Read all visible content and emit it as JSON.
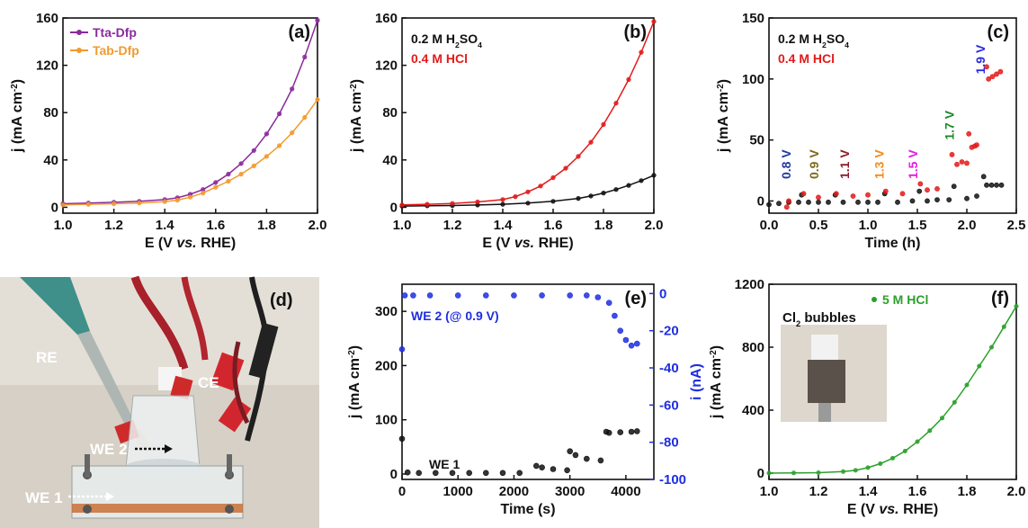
{
  "figure": "composite",
  "chart_data": [
    {
      "id": "a",
      "type": "line",
      "panel_label": "(a)",
      "xlabel": "E (V vs. RHE)",
      "ylabel": "j (mA cm-2)",
      "xlim": [
        1.0,
        2.0
      ],
      "ylim": [
        -5,
        160
      ],
      "xticks": [
        1.0,
        1.2,
        1.4,
        1.6,
        1.8,
        2.0
      ],
      "xtick_labels": [
        "1.0",
        "1.2",
        "1.4",
        "1.6",
        "1.8",
        "2.0"
      ],
      "yticks": [
        0,
        40,
        80,
        120,
        160
      ],
      "ytick_labels": [
        "0",
        "40",
        "80",
        "120",
        "160"
      ],
      "legend": "top-left",
      "series": [
        {
          "name": "Tta-Dfp",
          "color": "#8b2a9e",
          "x": [
            1.0,
            1.1,
            1.2,
            1.3,
            1.4,
            1.45,
            1.5,
            1.55,
            1.6,
            1.65,
            1.7,
            1.75,
            1.8,
            1.85,
            1.9,
            1.95,
            2.0
          ],
          "y": [
            3,
            3.6,
            4.2,
            5,
            6.5,
            8,
            11,
            15,
            21,
            28,
            37,
            48,
            62,
            79,
            100,
            127,
            158
          ]
        },
        {
          "name": "Tab-Dfp",
          "color": "#f29a2e",
          "x": [
            1.0,
            1.1,
            1.2,
            1.3,
            1.4,
            1.45,
            1.5,
            1.55,
            1.6,
            1.65,
            1.7,
            1.75,
            1.8,
            1.85,
            1.9,
            1.95,
            2.0
          ],
          "y": [
            2,
            2.5,
            3,
            3.6,
            4.8,
            6,
            8.5,
            12,
            17,
            22,
            28,
            35,
            43,
            52,
            63,
            76,
            91
          ]
        }
      ]
    },
    {
      "id": "b",
      "type": "line",
      "panel_label": "(b)",
      "xlabel": "E (V vs. RHE)",
      "ylabel": "j (mA cm-2)",
      "xlim": [
        1.0,
        2.0
      ],
      "ylim": [
        -5,
        160
      ],
      "xticks": [
        1.0,
        1.2,
        1.4,
        1.6,
        1.8,
        2.0
      ],
      "xtick_labels": [
        "1.0",
        "1.2",
        "1.4",
        "1.6",
        "1.8",
        "2.0"
      ],
      "yticks": [
        0,
        40,
        80,
        120,
        160
      ],
      "ytick_labels": [
        "0",
        "40",
        "80",
        "120",
        "160"
      ],
      "legend": "top-left",
      "series": [
        {
          "name": "0.2 M H2SO4",
          "color": "#111111",
          "x": [
            1.0,
            1.1,
            1.2,
            1.3,
            1.4,
            1.5,
            1.6,
            1.7,
            1.75,
            1.8,
            1.85,
            1.9,
            1.95,
            2.0
          ],
          "y": [
            1,
            1.2,
            1.5,
            1.9,
            2.5,
            3.5,
            5,
            7.5,
            9.5,
            12,
            15,
            18.5,
            22.5,
            27
          ]
        },
        {
          "name": "0.4 M HCl",
          "color": "#e41a1a",
          "x": [
            1.0,
            1.1,
            1.2,
            1.3,
            1.4,
            1.45,
            1.5,
            1.55,
            1.6,
            1.65,
            1.7,
            1.75,
            1.8,
            1.85,
            1.9,
            1.95,
            2.0
          ],
          "y": [
            2,
            2.5,
            3.2,
            4.5,
            6.5,
            9,
            13,
            18,
            25,
            33,
            43,
            55,
            70,
            88,
            108,
            131,
            157
          ]
        }
      ]
    },
    {
      "id": "c",
      "type": "scatter",
      "panel_label": "(c)",
      "xlabel": "Time (h)",
      "ylabel": "j (mA cm-2)",
      "xlim": [
        0.0,
        2.5
      ],
      "ylim": [
        -10,
        150
      ],
      "xticks": [
        0.0,
        0.5,
        1.0,
        1.5,
        2.0,
        2.5
      ],
      "xtick_labels": [
        "0.0",
        "0.5",
        "1.0",
        "1.5",
        "2.0",
        "2.5"
      ],
      "yticks": [
        0,
        50,
        100,
        150
      ],
      "ytick_labels": [
        "0",
        "50",
        "100",
        "150"
      ],
      "legend": "top-left",
      "series": [
        {
          "name": "0.2 M H2SO4",
          "color": "#111111",
          "x": [
            0.0,
            0.1,
            0.2,
            0.3,
            0.33,
            0.4,
            0.5,
            0.6,
            0.67,
            0.75,
            0.9,
            1.0,
            1.1,
            1.17,
            1.3,
            1.45,
            1.52,
            1.6,
            1.7,
            1.82,
            1.87,
            2.0,
            2.1,
            2.17,
            2.2,
            2.25,
            2.3,
            2.35
          ],
          "y": [
            -3,
            -2,
            -1,
            -1,
            5,
            -1,
            -1,
            -1,
            5,
            -1,
            -1,
            -1,
            -1,
            6,
            -1,
            0,
            8,
            0,
            1,
            1,
            12,
            2,
            4,
            20,
            13,
            13,
            13,
            13
          ]
        },
        {
          "name": "0.4 M HCl",
          "color": "#e41a1a",
          "x": [
            0.18,
            0.2,
            0.35,
            0.5,
            0.68,
            0.85,
            1.0,
            1.18,
            1.35,
            1.53,
            1.6,
            1.7,
            1.85,
            1.9,
            1.95,
            2.0,
            2.02,
            2.05,
            2.08,
            2.1,
            2.2,
            2.22,
            2.26,
            2.3,
            2.34
          ],
          "y": [
            -5,
            0,
            6,
            3,
            6,
            4,
            5,
            8,
            6,
            14,
            9,
            10,
            38,
            30,
            32,
            31,
            55,
            44,
            45,
            46,
            110,
            100,
            102,
            104,
            106
          ]
        }
      ],
      "annotations": [
        {
          "text": "0.8 V",
          "color": "#1f3a9e"
        },
        {
          "text": "0.9 V",
          "color": "#7a6a1c"
        },
        {
          "text": "1.1 V",
          "color": "#8e1b2a"
        },
        {
          "text": "1.3 V",
          "color": "#f08c1e"
        },
        {
          "text": "1.5 V",
          "color": "#e21ce0"
        },
        {
          "text": "1.7 V",
          "color": "#1a8a2a"
        },
        {
          "text": "1.9 V",
          "color": "#2a2ae0"
        }
      ]
    },
    {
      "id": "e",
      "type": "scatter",
      "panel_label": "(e)",
      "xlabel": "Time (s)",
      "ylabel": "j (mA cm-2)",
      "ylabel_right": "i (nA)",
      "xlim": [
        0,
        4500
      ],
      "ylim": [
        -10,
        350
      ],
      "ylim_right": [
        -100,
        5
      ],
      "xticks": [
        0,
        1000,
        2000,
        3000,
        4000
      ],
      "xtick_labels": [
        "0",
        "1000",
        "2000",
        "3000",
        "4000"
      ],
      "yticks": [
        0,
        100,
        200,
        300
      ],
      "ytick_labels": [
        "0",
        "100",
        "200",
        "300"
      ],
      "yticks_right": [
        0,
        -20,
        -40,
        -60,
        -80,
        -100
      ],
      "ytick_labels_right": [
        "0",
        "-20",
        "-40",
        "-60",
        "-80",
        "-100"
      ],
      "series": [
        {
          "name": "WE 1",
          "color": "#111111",
          "axis": "left",
          "x": [
            0,
            100,
            300,
            600,
            900,
            1200,
            1500,
            1800,
            2100,
            2400,
            2500,
            2700,
            2950,
            3000,
            3100,
            3300,
            3550,
            3650,
            3700,
            3900,
            4100,
            4200
          ],
          "y": [
            65,
            3,
            2,
            2,
            2,
            2,
            2,
            2,
            2,
            15,
            12,
            9,
            7,
            42,
            35,
            28,
            25,
            78,
            76,
            77,
            78,
            79
          ]
        },
        {
          "name": "WE 2 (@ 0.9 V)",
          "color": "#1f2ee0",
          "axis": "right",
          "x": [
            0,
            50,
            200,
            500,
            1000,
            1500,
            2000,
            2500,
            3000,
            3300,
            3500,
            3700,
            3800,
            3900,
            4000,
            4100,
            4200
          ],
          "y": [
            -30,
            -1,
            -1,
            -1,
            -1,
            -1,
            -1,
            -1,
            -1,
            -1,
            -2,
            -5,
            -12,
            -20,
            -25,
            -28,
            -27
          ]
        }
      ]
    },
    {
      "id": "f",
      "type": "line",
      "panel_label": "(f)",
      "xlabel": "E (V vs. RHE)",
      "ylabel": "j (mA cm-2)",
      "xlim": [
        1.0,
        2.0
      ],
      "ylim": [
        -40,
        1200
      ],
      "xticks": [
        1.0,
        1.2,
        1.4,
        1.6,
        1.8,
        2.0
      ],
      "xtick_labels": [
        "1.0",
        "1.2",
        "1.4",
        "1.6",
        "1.8",
        "2.0"
      ],
      "yticks": [
        0,
        400,
        800,
        1200
      ],
      "ytick_labels": [
        "0",
        "400",
        "800",
        "1200"
      ],
      "legend": "top-center",
      "inset_caption": "Cl2 bubbles",
      "series": [
        {
          "name": "5 M HCl",
          "color": "#2ca02c",
          "x": [
            1.0,
            1.1,
            1.2,
            1.3,
            1.35,
            1.4,
            1.45,
            1.5,
            1.55,
            1.6,
            1.65,
            1.7,
            1.75,
            1.8,
            1.85,
            1.9,
            1.95,
            2.0
          ],
          "y": [
            0,
            1,
            3,
            10,
            18,
            35,
            60,
            95,
            140,
            200,
            270,
            350,
            450,
            560,
            680,
            800,
            930,
            1060
          ]
        }
      ]
    }
  ],
  "photo": {
    "panel_label": "(d)",
    "labels": [
      "RE",
      "CE",
      "WE 2",
      "WE 1"
    ]
  }
}
